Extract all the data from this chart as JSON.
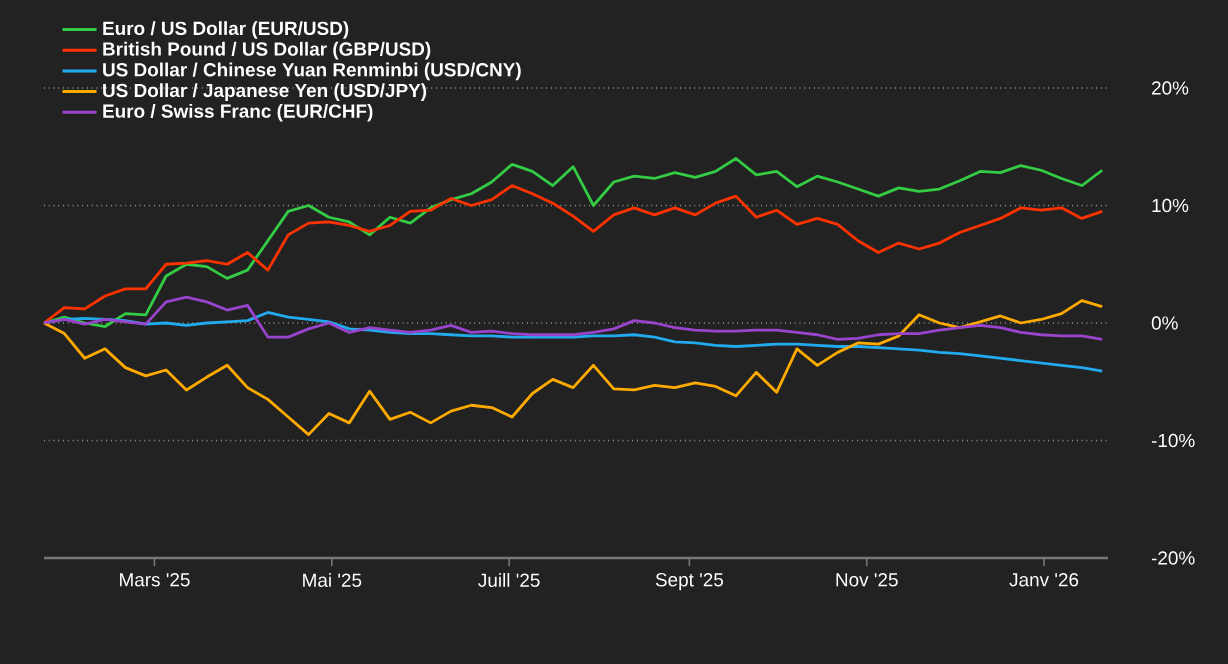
{
  "chart_data": {
    "type": "line",
    "x": [
      "2025-01-22",
      "2025-01-29",
      "2025-02-05",
      "2025-02-12",
      "2025-02-19",
      "2025-02-26",
      "2025-03-05",
      "2025-03-12",
      "2025-03-19",
      "2025-03-26",
      "2025-04-02",
      "2025-04-09",
      "2025-04-16",
      "2025-04-23",
      "2025-04-30",
      "2025-05-07",
      "2025-05-14",
      "2025-05-21",
      "2025-05-28",
      "2025-06-04",
      "2025-06-11",
      "2025-06-18",
      "2025-06-25",
      "2025-07-02",
      "2025-07-09",
      "2025-07-16",
      "2025-07-23",
      "2025-07-30",
      "2025-08-06",
      "2025-08-13",
      "2025-08-20",
      "2025-08-27",
      "2025-09-03",
      "2025-09-10",
      "2025-09-17",
      "2025-09-24",
      "2025-10-01",
      "2025-10-08",
      "2025-10-15",
      "2025-10-22",
      "2025-10-29",
      "2025-11-05",
      "2025-11-12",
      "2025-11-19",
      "2025-11-26",
      "2025-12-03",
      "2025-12-10",
      "2025-12-17",
      "2025-12-24",
      "2025-12-31",
      "2026-01-07",
      "2026-01-14",
      "2026-01-21"
    ],
    "series": [
      {
        "name": "Euro / US Dollar (EUR/USD)",
        "color": "#33cc44",
        "values": [
          0,
          0.5,
          0,
          -0.3,
          0.8,
          0.7,
          4.0,
          5.0,
          4.8,
          3.8,
          4.5,
          7.0,
          9.5,
          10.0,
          9.0,
          8.6,
          7.5,
          9.0,
          8.5,
          9.8,
          10.5,
          11.0,
          12.0,
          13.5,
          12.9,
          11.7,
          13.3,
          10.0,
          12.0,
          12.5,
          12.3,
          12.8,
          12.4,
          12.9,
          14.0,
          12.6,
          12.9,
          11.6,
          12.5,
          12.0,
          11.4,
          10.8,
          11.5,
          11.2,
          11.4,
          12.1,
          12.9,
          12.8,
          13.4,
          13.0,
          12.3,
          11.7,
          13.0
        ]
      },
      {
        "name": "British Pound / US Dollar (GBP/USD)",
        "color": "#ff3300",
        "values": [
          0,
          1.3,
          1.2,
          2.3,
          2.9,
          2.9,
          5.0,
          5.1,
          5.3,
          5.0,
          6.0,
          4.5,
          7.5,
          8.5,
          8.6,
          8.3,
          7.8,
          8.3,
          9.5,
          9.6,
          10.6,
          10.0,
          10.5,
          11.7,
          11.0,
          10.2,
          9.1,
          7.8,
          9.2,
          9.8,
          9.2,
          9.8,
          9.2,
          10.2,
          10.8,
          9.0,
          9.6,
          8.4,
          8.9,
          8.4,
          7.0,
          6.0,
          6.8,
          6.3,
          6.8,
          7.7,
          8.3,
          8.9,
          9.8,
          9.6,
          9.8,
          8.9,
          9.5
        ]
      },
      {
        "name": "US Dollar / Chinese Yuan Renminbi (USD/CNY)",
        "color": "#22aaee",
        "values": [
          0,
          0.3,
          0.4,
          0.3,
          0.2,
          -0.1,
          0,
          -0.2,
          0,
          0.1,
          0.2,
          0.9,
          0.5,
          0.3,
          0.1,
          -0.5,
          -0.6,
          -0.8,
          -0.9,
          -0.9,
          -1.0,
          -1.1,
          -1.1,
          -1.2,
          -1.2,
          -1.2,
          -1.2,
          -1.1,
          -1.1,
          -1.0,
          -1.2,
          -1.6,
          -1.7,
          -1.9,
          -2.0,
          -1.9,
          -1.8,
          -1.8,
          -1.9,
          -2.0,
          -2.0,
          -2.1,
          -2.2,
          -2.3,
          -2.5,
          -2.6,
          -2.8,
          -3.0,
          -3.2,
          -3.4,
          -3.6,
          -3.8,
          -4.1
        ]
      },
      {
        "name": "US Dollar / Japanese Yen (USD/JPY)",
        "color": "#ffaa00",
        "values": [
          0,
          -0.9,
          -3.0,
          -2.2,
          -3.8,
          -4.5,
          -4.0,
          -5.7,
          -4.6,
          -3.6,
          -5.5,
          -6.5,
          -8.0,
          -9.5,
          -7.7,
          -8.5,
          -5.8,
          -8.2,
          -7.6,
          -8.5,
          -7.5,
          -7.0,
          -7.2,
          -8.0,
          -6.0,
          -4.8,
          -5.5,
          -3.6,
          -5.6,
          -5.7,
          -5.3,
          -5.5,
          -5.1,
          -5.4,
          -6.2,
          -4.2,
          -5.9,
          -2.2,
          -3.6,
          -2.5,
          -1.7,
          -1.8,
          -1.1,
          0.7,
          0.0,
          -0.4,
          0.1,
          0.6,
          0,
          0.3,
          0.8,
          1.9,
          1.4
        ]
      },
      {
        "name": "Euro / Swiss Franc (EUR/CHF)",
        "color": "#9944cc",
        "values": [
          0,
          0.3,
          -0.1,
          0.3,
          0.1,
          -0.1,
          1.8,
          2.2,
          1.8,
          1.1,
          1.5,
          -1.2,
          -1.2,
          -0.5,
          0,
          -0.8,
          -0.4,
          -0.6,
          -0.8,
          -0.6,
          -0.2,
          -0.8,
          -0.7,
          -0.9,
          -1.0,
          -1.0,
          -1.0,
          -0.8,
          -0.5,
          0.2,
          0,
          -0.4,
          -0.6,
          -0.7,
          -0.7,
          -0.6,
          -0.6,
          -0.8,
          -1.0,
          -1.4,
          -1.3,
          -1.0,
          -0.9,
          -0.9,
          -0.6,
          -0.4,
          -0.2,
          -0.4,
          -0.8,
          -1.0,
          -1.1,
          -1.1,
          -1.4
        ]
      }
    ],
    "xlim": [
      "2025-01-22",
      "2026-01-23"
    ],
    "xticks": [
      {
        "value": "2025-03-01",
        "label": "Mars '25"
      },
      {
        "value": "2025-05-01",
        "label": "Mai '25"
      },
      {
        "value": "2025-07-01",
        "label": "Juill '25"
      },
      {
        "value": "2025-09-01",
        "label": "Sept '25"
      },
      {
        "value": "2025-11-01",
        "label": "Nov '25"
      },
      {
        "value": "2026-01-01",
        "label": "Janv '26"
      }
    ],
    "ylim": [
      -20,
      20
    ],
    "yticks": [
      {
        "value": -20,
        "label": "-20%"
      },
      {
        "value": -10,
        "label": "-10%"
      },
      {
        "value": 0,
        "label": "0%"
      },
      {
        "value": 10,
        "label": "10%"
      },
      {
        "value": 20,
        "label": "20%"
      }
    ],
    "grid": "y",
    "legend": "top left",
    "line_style": "solid",
    "marker": "none"
  }
}
